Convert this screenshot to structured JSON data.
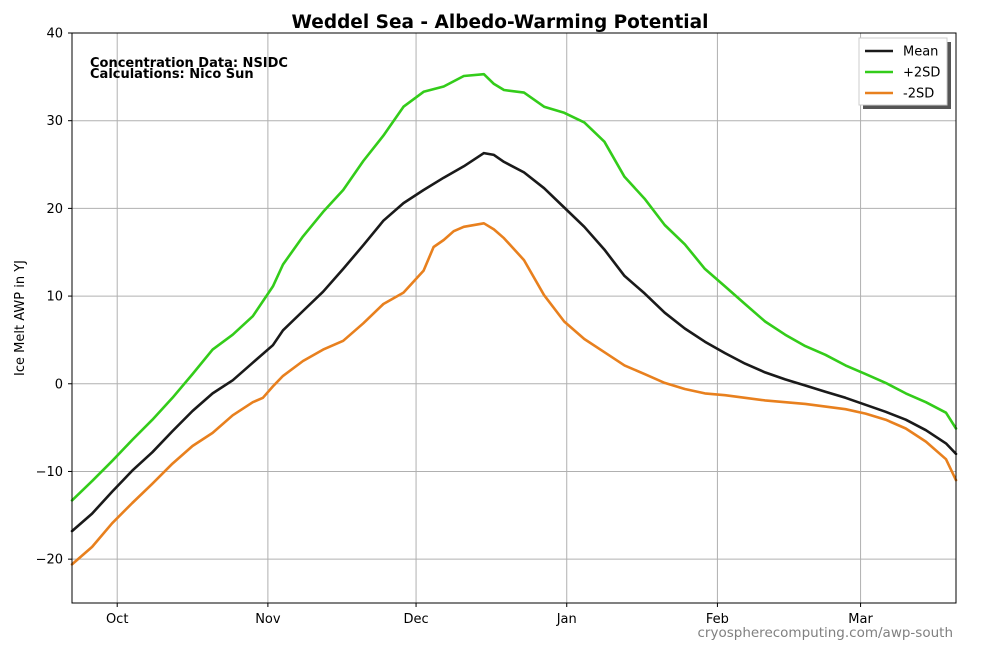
{
  "chart_data": {
    "type": "line",
    "title": "Weddel Sea - Albedo-Warming Potential",
    "xlabel": "",
    "ylabel": "Ice Melt AWP in  YJ",
    "ylim": [
      -25,
      40
    ],
    "xlim": [
      0,
      176
    ],
    "yticks": [
      40,
      30,
      20,
      10,
      0,
      -10,
      -20
    ],
    "ytick_labels": [
      "40",
      "30",
      "20",
      "10",
      "0",
      "−10",
      "−20"
    ],
    "xticks": [
      {
        "label": "Oct",
        "x": 9
      },
      {
        "label": "Nov",
        "x": 39
      },
      {
        "label": "Dec",
        "x": 68.5
      },
      {
        "label": "Jan",
        "x": 98.5
      },
      {
        "label": "Feb",
        "x": 128.5
      },
      {
        "label": "Mar",
        "x": 157
      }
    ],
    "grid": true,
    "legend_position": "top-right",
    "annotations": [
      "Concentration Data: NSIDC",
      "Calculations: Nico Sun"
    ],
    "credit": "cryospherecomputing.com/awp-south",
    "series": [
      {
        "name": "Mean",
        "color": "#1a1a1a",
        "points": [
          [
            0,
            -16.8
          ],
          [
            4,
            -14.8
          ],
          [
            8,
            -12.3
          ],
          [
            12,
            -9.9
          ],
          [
            16,
            -7.8
          ],
          [
            20,
            -5.4
          ],
          [
            24,
            -3.1
          ],
          [
            28,
            -1.1
          ],
          [
            32,
            0.4
          ],
          [
            36,
            2.4
          ],
          [
            40,
            4.4
          ],
          [
            42,
            6.1
          ],
          [
            46,
            8.3
          ],
          [
            50,
            10.5
          ],
          [
            54,
            13.1
          ],
          [
            58,
            15.8
          ],
          [
            62,
            18.6
          ],
          [
            66,
            20.6
          ],
          [
            70,
            22.1
          ],
          [
            74,
            23.5
          ],
          [
            78,
            24.8
          ],
          [
            82,
            26.3
          ],
          [
            84,
            26.1
          ],
          [
            86,
            25.3
          ],
          [
            90,
            24.1
          ],
          [
            94,
            22.3
          ],
          [
            98,
            20.1
          ],
          [
            102,
            17.9
          ],
          [
            106,
            15.3
          ],
          [
            110,
            12.3
          ],
          [
            114,
            10.3
          ],
          [
            118,
            8.1
          ],
          [
            122,
            6.3
          ],
          [
            126,
            4.8
          ],
          [
            130,
            3.5
          ],
          [
            134,
            2.3
          ],
          [
            138,
            1.3
          ],
          [
            142,
            0.5
          ],
          [
            146,
            -0.2
          ],
          [
            150,
            -0.9
          ],
          [
            154,
            -1.6
          ],
          [
            158,
            -2.4
          ],
          [
            162,
            -3.2
          ],
          [
            166,
            -4.1
          ],
          [
            170,
            -5.3
          ],
          [
            174,
            -6.8
          ],
          [
            176,
            -8.0
          ]
        ]
      },
      {
        "name": "+2SD",
        "color": "#33cc1a",
        "points": [
          [
            0,
            -13.3
          ],
          [
            4,
            -11.1
          ],
          [
            8,
            -8.8
          ],
          [
            12,
            -6.4
          ],
          [
            16,
            -4.1
          ],
          [
            20,
            -1.6
          ],
          [
            24,
            1.1
          ],
          [
            28,
            3.9
          ],
          [
            32,
            5.6
          ],
          [
            36,
            7.7
          ],
          [
            40,
            11.1
          ],
          [
            42,
            13.6
          ],
          [
            46,
            16.8
          ],
          [
            50,
            19.6
          ],
          [
            54,
            22.1
          ],
          [
            58,
            25.4
          ],
          [
            62,
            28.3
          ],
          [
            66,
            31.6
          ],
          [
            70,
            33.3
          ],
          [
            74,
            33.9
          ],
          [
            78,
            35.1
          ],
          [
            82,
            35.3
          ],
          [
            84,
            34.2
          ],
          [
            86,
            33.5
          ],
          [
            90,
            33.2
          ],
          [
            94,
            31.6
          ],
          [
            98,
            30.9
          ],
          [
            102,
            29.8
          ],
          [
            106,
            27.6
          ],
          [
            110,
            23.6
          ],
          [
            114,
            21.1
          ],
          [
            118,
            18.1
          ],
          [
            122,
            15.9
          ],
          [
            126,
            13.1
          ],
          [
            130,
            11.1
          ],
          [
            134,
            9.1
          ],
          [
            138,
            7.1
          ],
          [
            142,
            5.6
          ],
          [
            146,
            4.3
          ],
          [
            150,
            3.3
          ],
          [
            154,
            2.1
          ],
          [
            158,
            1.1
          ],
          [
            162,
            0.1
          ],
          [
            166,
            -1.1
          ],
          [
            170,
            -2.1
          ],
          [
            174,
            -3.3
          ],
          [
            176,
            -5.1
          ]
        ]
      },
      {
        "name": "-2SD",
        "color": "#e8801e",
        "points": [
          [
            0,
            -20.6
          ],
          [
            4,
            -18.6
          ],
          [
            8,
            -15.9
          ],
          [
            12,
            -13.6
          ],
          [
            16,
            -11.4
          ],
          [
            20,
            -9.1
          ],
          [
            24,
            -7.1
          ],
          [
            28,
            -5.6
          ],
          [
            32,
            -3.6
          ],
          [
            36,
            -2.1
          ],
          [
            38,
            -1.6
          ],
          [
            40,
            -0.3
          ],
          [
            42,
            0.9
          ],
          [
            46,
            2.6
          ],
          [
            50,
            3.9
          ],
          [
            54,
            4.9
          ],
          [
            58,
            6.9
          ],
          [
            62,
            9.1
          ],
          [
            66,
            10.4
          ],
          [
            70,
            12.9
          ],
          [
            72,
            15.6
          ],
          [
            74,
            16.4
          ],
          [
            76,
            17.4
          ],
          [
            78,
            17.9
          ],
          [
            82,
            18.3
          ],
          [
            84,
            17.6
          ],
          [
            86,
            16.6
          ],
          [
            90,
            14.1
          ],
          [
            94,
            10.1
          ],
          [
            98,
            7.1
          ],
          [
            102,
            5.1
          ],
          [
            106,
            3.6
          ],
          [
            110,
            2.1
          ],
          [
            114,
            1.1
          ],
          [
            118,
            0.1
          ],
          [
            122,
            -0.6
          ],
          [
            126,
            -1.1
          ],
          [
            130,
            -1.3
          ],
          [
            134,
            -1.6
          ],
          [
            138,
            -1.9
          ],
          [
            142,
            -2.1
          ],
          [
            146,
            -2.3
          ],
          [
            150,
            -2.6
          ],
          [
            154,
            -2.9
          ],
          [
            158,
            -3.4
          ],
          [
            162,
            -4.1
          ],
          [
            166,
            -5.1
          ],
          [
            170,
            -6.6
          ],
          [
            174,
            -8.6
          ],
          [
            176,
            -11.0
          ]
        ]
      }
    ]
  }
}
